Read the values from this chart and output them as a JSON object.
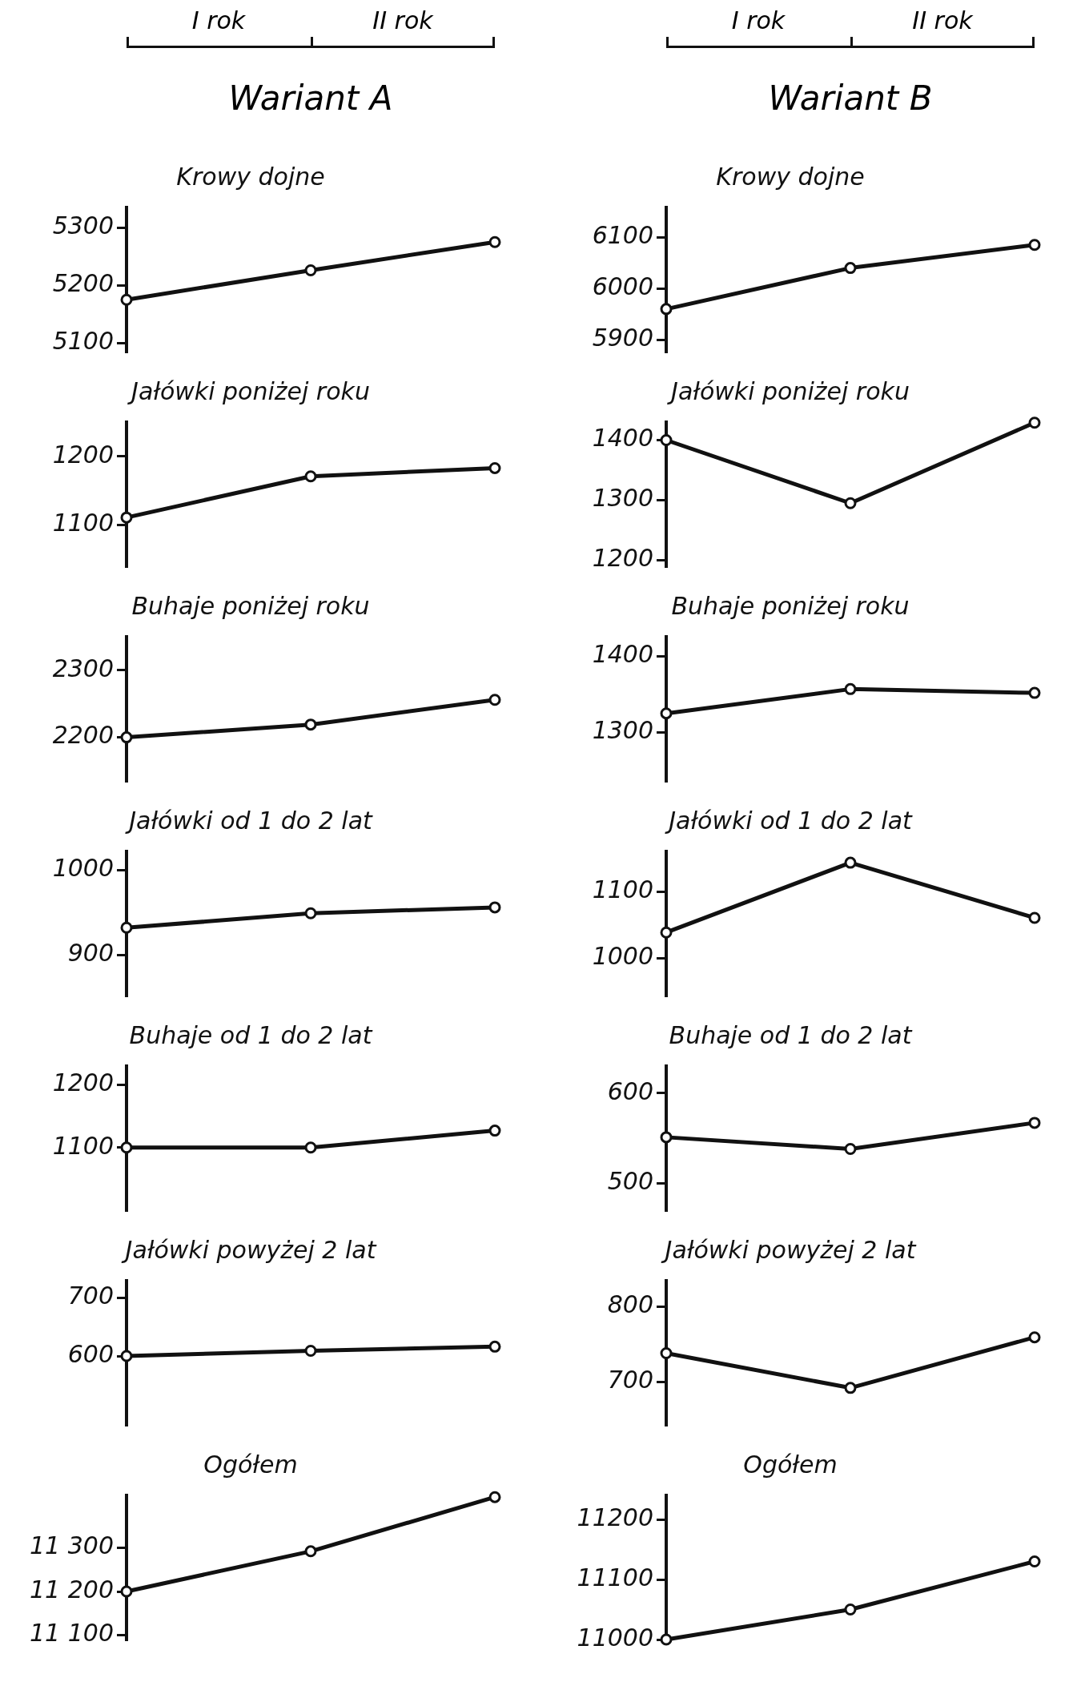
{
  "chart_data": [
    {
      "type": "line",
      "title": "Krowy dojne",
      "annotations": [
        "I rok",
        "II rok",
        "Wariant A"
      ],
      "categories": [
        null,
        null,
        null
      ],
      "values": [
        5175,
        5226,
        5275
      ],
      "color": "#111111",
      "ylim": [
        5085,
        5335
      ],
      "yticks": [
        5100,
        5200,
        5300
      ],
      "marker": "circle",
      "tick_labels": "y",
      "grid": false,
      "legend": false
    },
    {
      "type": "line",
      "title": "Jałówki poniżej roku",
      "categories": [
        null,
        null,
        null
      ],
      "values": [
        1111,
        1171,
        1183
      ],
      "color": "#111111",
      "ylim": [
        1040,
        1250
      ],
      "yticks": [
        1100,
        1200
      ],
      "marker": "circle",
      "tick_labels": "y",
      "grid": false,
      "legend": false
    },
    {
      "type": "line",
      "title": "Buhaje poniżej roku",
      "categories": [
        null,
        null,
        null
      ],
      "values": [
        2200,
        2219,
        2256
      ],
      "color": "#111111",
      "ylim": [
        2135,
        2350
      ],
      "yticks": [
        2200,
        2300
      ],
      "marker": "circle",
      "tick_labels": "y",
      "grid": false,
      "legend": false
    },
    {
      "type": "line",
      "title": "Jałówki od 1 do 2 lat",
      "categories": [
        null,
        null,
        null
      ],
      "values": [
        932,
        949,
        956
      ],
      "color": "#111111",
      "ylim": [
        852,
        1022
      ],
      "yticks": [
        900,
        1000
      ],
      "marker": "circle",
      "tick_labels": "y",
      "grid": false,
      "legend": false
    },
    {
      "type": "line",
      "title": "Buhaje od 1 do 2 lat",
      "categories": [
        null,
        null,
        null
      ],
      "values": [
        1100,
        1100,
        1127
      ],
      "color": "#111111",
      "ylim": [
        1000,
        1230
      ],
      "yticks": [
        1100,
        1200
      ],
      "marker": "circle",
      "tick_labels": "y",
      "grid": false,
      "legend": false
    },
    {
      "type": "line",
      "title": "Jałówki powyżej 2 lat",
      "categories": [
        null,
        null,
        null
      ],
      "values": [
        600,
        609,
        616
      ],
      "color": "#111111",
      "ylim": [
        482,
        729
      ],
      "yticks": [
        600,
        700
      ],
      "marker": "circle",
      "tick_labels": "y",
      "grid": false,
      "legend": false
    },
    {
      "type": "line",
      "title": "Ogółem",
      "categories": [
        null,
        null,
        null
      ],
      "values": [
        11200,
        11292,
        11416
      ],
      "color": "#111111",
      "ylim": [
        11090,
        11420
      ],
      "yticks": [
        {
          "value": 11100,
          "label": "11 100"
        },
        {
          "value": 11200,
          "label": "11 200"
        },
        {
          "value": 11300,
          "label": "11 300"
        }
      ],
      "marker": "circle",
      "tick_labels": "y",
      "grid": false,
      "legend": false
    },
    {
      "type": "line",
      "title": "Krowy dojne",
      "annotations": [
        "I rok",
        "II rok",
        "Wariant B"
      ],
      "categories": [
        null,
        null,
        null
      ],
      "values": [
        5960,
        6040,
        6085
      ],
      "color": "#111111",
      "ylim": [
        5877,
        6158
      ],
      "yticks": [
        5900,
        6000,
        6100
      ],
      "marker": "circle",
      "tick_labels": "y",
      "grid": false,
      "legend": false
    },
    {
      "type": "line",
      "title": "Jałówki poniżej roku",
      "categories": [
        null,
        null,
        null
      ],
      "values": [
        1400,
        1295,
        1429
      ],
      "color": "#111111",
      "ylim": [
        1190,
        1430
      ],
      "yticks": [
        1200,
        1300,
        1400
      ],
      "marker": "circle",
      "tick_labels": "y",
      "grid": false,
      "legend": false
    },
    {
      "type": "line",
      "title": "Buhaje poniżej roku",
      "categories": [
        null,
        null,
        null
      ],
      "values": [
        1325,
        1357,
        1352
      ],
      "color": "#111111",
      "ylim": [
        1236,
        1426
      ],
      "yticks": [
        1300,
        1400
      ],
      "marker": "circle",
      "tick_labels": "y",
      "grid": false,
      "legend": false
    },
    {
      "type": "line",
      "title": "Jałówki od 1 do 2 lat",
      "categories": [
        null,
        null,
        null
      ],
      "values": [
        1039,
        1144,
        1061
      ],
      "color": "#111111",
      "ylim": [
        944,
        1161
      ],
      "yticks": [
        1000,
        1100
      ],
      "marker": "circle",
      "tick_labels": "y",
      "grid": false,
      "legend": false
    },
    {
      "type": "line",
      "title": "Buhaje od 1 do 2 lat",
      "categories": [
        null,
        null,
        null
      ],
      "values": [
        551,
        538,
        567
      ],
      "color": "#111111",
      "ylim": [
        470,
        630
      ],
      "yticks": [
        500,
        600
      ],
      "marker": "circle",
      "tick_labels": "y",
      "grid": false,
      "legend": false
    },
    {
      "type": "line",
      "title": "Jałówki powyżej 2 lat",
      "categories": [
        null,
        null,
        null
      ],
      "values": [
        738,
        692,
        759
      ],
      "color": "#111111",
      "ylim": [
        643,
        834
      ],
      "yticks": [
        700,
        800
      ],
      "marker": "circle",
      "tick_labels": "y",
      "grid": false,
      "legend": false
    },
    {
      "type": "line",
      "title": "Ogółem",
      "categories": [
        null,
        null,
        null
      ],
      "values": [
        11000,
        11050,
        11130
      ],
      "color": "#111111",
      "ylim": [
        11000,
        11240
      ],
      "yticks": [
        11000,
        11100,
        11200
      ],
      "marker": "circle",
      "tick_labels": "y",
      "grid": false,
      "legend": false
    }
  ]
}
